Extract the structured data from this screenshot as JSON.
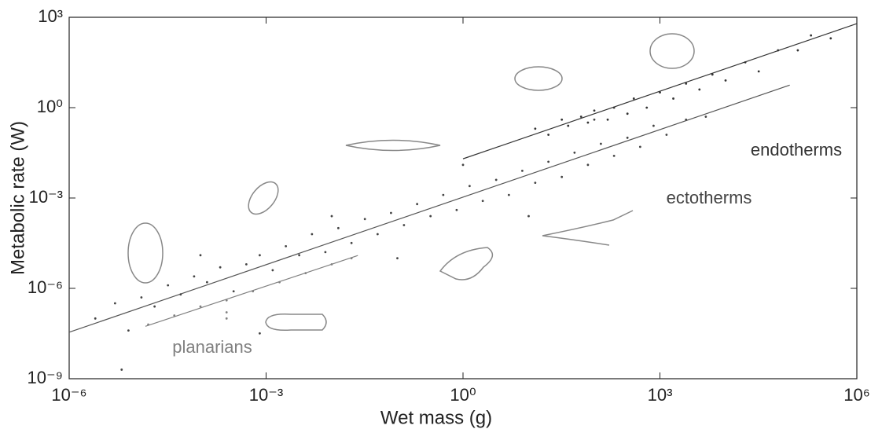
{
  "chart_data": {
    "type": "scatter",
    "xlabel": "Wet mass (g)",
    "ylabel": "Metabolic rate (W)",
    "xscale": "log",
    "yscale": "log",
    "xlim": [
      1e-06,
      1000000.0
    ],
    "ylim": [
      1e-09,
      1000.0
    ],
    "xticks": [
      {
        "value": 1e-06,
        "label": "10⁻⁶"
      },
      {
        "value": 0.001,
        "label": "10⁻³"
      },
      {
        "value": 1,
        "label": "10⁰"
      },
      {
        "value": 1000.0,
        "label": "10³"
      },
      {
        "value": 1000000.0,
        "label": "10⁶"
      }
    ],
    "yticks": [
      {
        "value": 1e-09,
        "label": "10⁻⁹"
      },
      {
        "value": 1e-06,
        "label": "10⁻⁶"
      },
      {
        "value": 0.001,
        "label": "10⁻³"
      },
      {
        "value": 1,
        "label": "10⁰"
      },
      {
        "value": 1000.0,
        "label": "10³"
      }
    ],
    "series": [
      {
        "name": "endotherms",
        "color": "#333333",
        "x": [
          12.6,
          20,
          32,
          40,
          63,
          80,
          100,
          160,
          200,
          320,
          400,
          630,
          1000,
          1600,
          2500,
          4000,
          6300,
          10000,
          20000,
          32000,
          63000,
          126000,
          200000,
          400000
        ],
        "values": [
          0.2,
          0.126,
          0.4,
          0.25,
          0.5,
          0.32,
          0.8,
          0.4,
          1,
          0.63,
          2,
          1,
          3.2,
          2,
          6.3,
          4,
          12.6,
          8,
          32,
          16,
          80,
          80,
          250,
          200
        ]
      },
      {
        "name": "ectotherms",
        "color": "#444444",
        "x": [
          2.5e-06,
          5e-06,
          8e-06,
          1.26e-05,
          2e-05,
          3.2e-05,
          5e-05,
          8e-05,
          0.000126,
          0.0002,
          0.00032,
          0.0005,
          0.0008,
          0.00126,
          0.002,
          0.0032,
          0.005,
          0.008,
          0.0126,
          0.02,
          0.032,
          0.05,
          0.08,
          0.126,
          0.2,
          0.32,
          0.5,
          0.8,
          1.26,
          2,
          3.2,
          5,
          8,
          12.6,
          20,
          32,
          50,
          80,
          126,
          200,
          320,
          500,
          800,
          1260,
          2500,
          5000,
          0.0001,
          0.01,
          0.1,
          1,
          10,
          100,
          6.3e-06,
          0.0008
        ],
        "values": [
          1e-07,
          3.2e-07,
          4e-08,
          5e-07,
          2.5e-07,
          1.26e-06,
          6.3e-07,
          2.5e-06,
          1.6e-06,
          5e-06,
          8e-07,
          6.3e-06,
          1.26e-05,
          4e-06,
          2.5e-05,
          1.26e-05,
          6.3e-05,
          1.6e-05,
          0.0001,
          3.2e-05,
          0.0002,
          6.3e-05,
          0.00032,
          0.000126,
          0.00063,
          0.00025,
          0.00126,
          0.0004,
          0.0025,
          0.0008,
          0.004,
          0.00126,
          0.008,
          0.0032,
          0.016,
          0.005,
          0.032,
          0.0126,
          0.063,
          0.025,
          0.1,
          0.05,
          0.25,
          0.126,
          0.4,
          0.5,
          1.26e-05,
          0.00025,
          1e-05,
          0.0126,
          0.00025,
          0.4,
          2e-09,
          3.2e-08
        ]
      },
      {
        "name": "planarians",
        "color": "#808080",
        "x": [
          1.6e-05,
          4e-05,
          0.0001,
          0.00025,
          0.00063,
          0.0016,
          0.004,
          0.01,
          0.02,
          0.00025,
          0.00025
        ],
        "values": [
          6.3e-08,
          1.26e-07,
          2.5e-07,
          4e-07,
          8e-07,
          1.6e-06,
          3.2e-06,
          6.3e-06,
          1e-05,
          1e-07,
          1.6e-07
        ]
      }
    ],
    "fits": [
      {
        "color": "#333333",
        "x": [
          1,
          1000000.0
        ],
        "values": [
          0.02,
          616
        ]
      },
      {
        "color": "#555555",
        "x": [
          1e-06,
          95000
        ],
        "values": [
          3.5e-08,
          5.6
        ]
      },
      {
        "color": "#808080",
        "x": [
          1.45e-05,
          0.025
        ],
        "values": [
          5.5e-08,
          1.23e-05
        ]
      }
    ]
  }
}
